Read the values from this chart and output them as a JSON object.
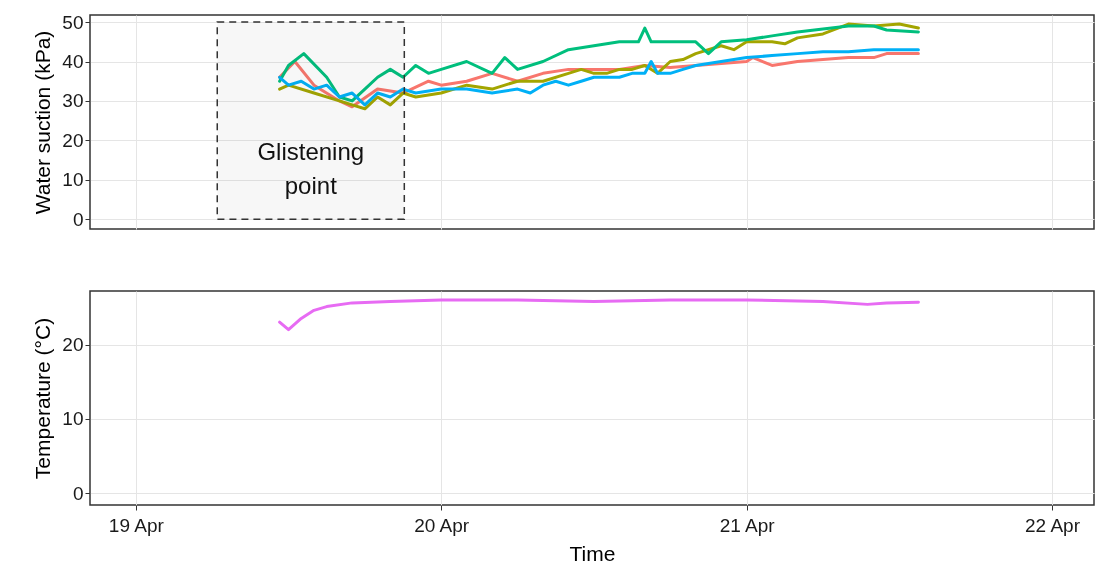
{
  "chart_data": [
    {
      "type": "line",
      "ylabel": "Water suction (kPa)",
      "xlim": [
        "--04-18T20:24",
        "--04-22T03:18"
      ],
      "xticks": [
        {
          "value": "--04-19",
          "label": "19 Apr"
        },
        {
          "value": "--04-20",
          "label": "20 Apr"
        },
        {
          "value": "--04-21",
          "label": "21 Apr"
        },
        {
          "value": "--04-22",
          "label": "22 Apr"
        }
      ],
      "ylim": [
        -2.5,
        51.8
      ],
      "yticks": [
        0,
        10,
        20,
        30,
        40,
        50
      ],
      "grid": true,
      "legend": false,
      "tick_labels": "y",
      "line_style": "solid",
      "bands": [
        {
          "axis": "x",
          "from": "--04-19T06:24",
          "to": "--04-19T21:06",
          "label": "Glistening point",
          "color": "#333333"
        }
      ],
      "series": [
        {
          "color": "#F8766D",
          "x": [
            "--04-19T11:18",
            "--04-19T12:30",
            "--04-19T14:00",
            "--04-19T16:00",
            "--04-19T17:00",
            "--04-19T19:00",
            "--04-19T21:00",
            "--04-19T23:00",
            "--04-20T00:00",
            "--04-20T02:00",
            "--04-20T04:00",
            "--04-20T06:00",
            "--04-20T08:00",
            "--04-20T10:00",
            "--04-20T12:00",
            "--04-20T14:00",
            "--04-20T16:00",
            "--04-20T18:00",
            "--04-20T20:00",
            "--04-20T22:00",
            "--04-21T00:00",
            "--04-21T00:30",
            "--04-21T02:00",
            "--04-21T04:00",
            "--04-21T06:00",
            "--04-21T08:00",
            "--04-21T10:00",
            "--04-21T11:00",
            "--04-21T13:30"
          ],
          "values": [
            36,
            40,
            34,
            30,
            28.5,
            33,
            32,
            35,
            34,
            35,
            37,
            35,
            37,
            38,
            38,
            38,
            39,
            38.5,
            39,
            39.5,
            40,
            41,
            39,
            40,
            40.5,
            41,
            41,
            42,
            42
          ]
        },
        {
          "color": "#A3A500",
          "x": [
            "--04-19T11:18",
            "--04-19T12:00",
            "--04-19T14:00",
            "--04-19T16:00",
            "--04-19T17:00",
            "--04-19T18:00",
            "--04-19T19:00",
            "--04-19T20:00",
            "--04-19T21:00",
            "--04-19T22:00",
            "--04-20T00:00",
            "--04-20T02:00",
            "--04-20T04:00",
            "--04-20T06:00",
            "--04-20T08:00",
            "--04-20T10:00",
            "--04-20T11:00",
            "--04-20T12:00",
            "--04-20T13:00",
            "--04-20T14:00",
            "--04-20T15:00",
            "--04-20T16:00",
            "--04-20T17:00",
            "--04-20T18:00",
            "--04-20T19:00",
            "--04-20T20:00",
            "--04-20T22:00",
            "--04-20T23:00",
            "--04-21T00:00",
            "--04-21T02:00",
            "--04-21T03:00",
            "--04-21T04:00",
            "--04-21T06:00",
            "--04-21T08:00",
            "--04-21T10:00",
            "--04-21T12:00",
            "--04-21T13:30"
          ],
          "values": [
            33,
            34,
            32,
            30,
            29,
            28,
            31,
            29,
            32,
            31,
            32,
            34,
            33,
            35,
            35,
            37,
            38,
            37,
            37,
            38,
            38,
            39,
            37,
            40,
            40.5,
            42,
            44,
            43,
            45,
            45,
            44.5,
            46,
            47,
            49.5,
            49,
            49.5,
            48.5
          ]
        },
        {
          "color": "#00BF7D",
          "x": [
            "--04-19T11:18",
            "--04-19T12:00",
            "--04-19T13:12",
            "--04-19T15:00",
            "--04-19T16:00",
            "--04-19T17:00",
            "--04-19T18:00",
            "--04-19T19:00",
            "--04-19T20:00",
            "--04-19T21:00",
            "--04-19T22:00",
            "--04-19T23:00",
            "--04-20T00:00",
            "--04-20T02:00",
            "--04-20T04:00",
            "--04-20T05:00",
            "--04-20T06:00",
            "--04-20T08:00",
            "--04-20T10:00",
            "--04-20T12:00",
            "--04-20T14:00",
            "--04-20T15:30",
            "--04-20T16:00",
            "--04-20T16:30",
            "--04-20T20:00",
            "--04-20T21:00",
            "--04-20T22:00",
            "--04-21T00:00",
            "--04-21T02:00",
            "--04-21T04:00",
            "--04-21T08:00",
            "--04-21T10:00",
            "--04-21T11:00",
            "--04-21T13:30"
          ],
          "values": [
            35,
            39,
            42,
            36,
            31,
            30,
            33,
            36,
            38,
            36,
            39,
            37,
            38,
            40,
            37,
            41,
            38,
            40,
            43,
            44,
            45,
            45,
            48.5,
            45,
            45,
            42,
            45,
            45.5,
            46.5,
            47.5,
            49,
            49,
            48,
            47.5
          ]
        },
        {
          "color": "#00B0F6",
          "x": [
            "--04-19T11:18",
            "--04-19T12:00",
            "--04-19T13:00",
            "--04-19T14:00",
            "--04-19T15:00",
            "--04-19T16:00",
            "--04-19T17:00",
            "--04-19T18:00",
            "--04-19T19:00",
            "--04-19T20:00",
            "--04-19T21:00",
            "--04-19T22:00",
            "--04-20T00:00",
            "--04-20T02:00",
            "--04-20T04:00",
            "--04-20T06:00",
            "--04-20T07:00",
            "--04-20T08:00",
            "--04-20T09:00",
            "--04-20T10:00",
            "--04-20T11:00",
            "--04-20T12:00",
            "--04-20T13:00",
            "--04-20T14:00",
            "--04-20T15:00",
            "--04-20T16:00",
            "--04-20T16:30",
            "--04-20T17:00",
            "--04-20T18:00",
            "--04-20T19:00",
            "--04-20T20:00",
            "--04-20T22:00",
            "--04-21T00:00",
            "--04-21T02:00",
            "--04-21T04:00",
            "--04-21T06:00",
            "--04-21T08:00",
            "--04-21T10:00",
            "--04-21T13:30"
          ],
          "values": [
            36,
            34,
            35,
            33,
            34,
            31,
            32,
            29,
            32,
            31,
            33,
            32,
            33,
            33,
            32,
            33,
            32,
            34,
            35,
            34,
            35,
            36,
            36,
            36,
            37,
            37,
            40,
            37,
            37,
            38,
            39,
            40,
            41,
            41.5,
            42,
            42.5,
            42.5,
            43,
            43
          ]
        }
      ]
    },
    {
      "type": "line",
      "xlabel": "Time",
      "ylabel": "Temperature (°C)",
      "xlim": [
        "--04-18T20:24",
        "--04-22T03:18"
      ],
      "xticks": [
        {
          "value": "--04-19",
          "label": "19 Apr"
        },
        {
          "value": "--04-20",
          "label": "20 Apr"
        },
        {
          "value": "--04-21",
          "label": "21 Apr"
        },
        {
          "value": "--04-22",
          "label": "22 Apr"
        }
      ],
      "ylim": [
        -1.6,
        27.2
      ],
      "yticks": [
        0,
        10,
        20
      ],
      "grid": true,
      "legend": false,
      "line_style": "solid",
      "series": [
        {
          "color": "#E76BF3",
          "x": [
            "--04-19T11:18",
            "--04-19T12:00",
            "--04-19T13:00",
            "--04-19T14:00",
            "--04-19T15:00",
            "--04-19T17:00",
            "--04-19T20:00",
            "--04-20T00:00",
            "--04-20T06:00",
            "--04-20T12:00",
            "--04-20T18:00",
            "--04-21T00:00",
            "--04-21T06:00",
            "--04-21T09:30",
            "--04-21T11:00",
            "--04-21T13:30"
          ],
          "values": [
            23,
            22,
            23.5,
            24.6,
            25.1,
            25.6,
            25.8,
            26,
            26,
            25.8,
            26,
            26,
            25.8,
            25.4,
            25.6,
            25.7
          ]
        }
      ]
    }
  ]
}
